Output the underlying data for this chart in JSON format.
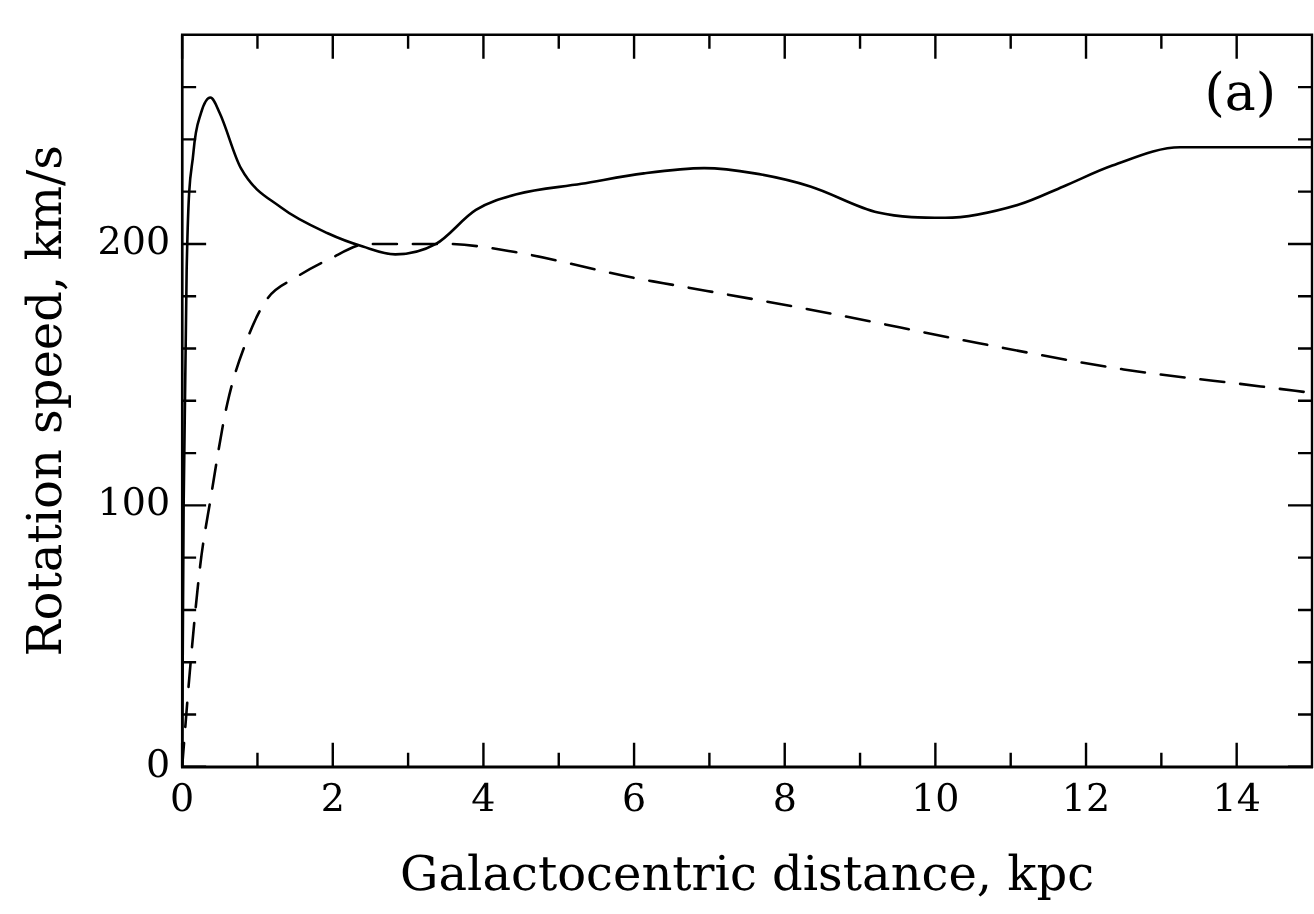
{
  "chart_data": {
    "type": "line",
    "xlabel": "Galactocentric distance, kpc",
    "ylabel": "Rotation speed, km/s",
    "annotations": [
      "(a)"
    ],
    "xlim": [
      0,
      15
    ],
    "ylim": [
      0,
      280
    ],
    "xticks": [
      0,
      {
        "value": 1,
        "label": null
      },
      2,
      {
        "value": 3,
        "label": null
      },
      4,
      {
        "value": 5,
        "label": null
      },
      6,
      {
        "value": 7,
        "label": null
      },
      8,
      {
        "value": 9,
        "label": null
      },
      10,
      {
        "value": 11,
        "label": null
      },
      12,
      {
        "value": 13,
        "label": null
      },
      14
    ],
    "yticks": [
      0,
      {
        "value": 20,
        "label": null
      },
      {
        "value": 40,
        "label": null
      },
      {
        "value": 60,
        "label": null
      },
      {
        "value": 80,
        "label": null
      },
      100,
      {
        "value": 120,
        "label": null
      },
      {
        "value": 140,
        "label": null
      },
      {
        "value": 160,
        "label": null
      },
      {
        "value": 180,
        "label": null
      },
      200,
      {
        "value": 220,
        "label": null
      },
      {
        "value": 240,
        "label": null
      },
      {
        "value": 260,
        "label": null
      }
    ],
    "grid": false,
    "legend": false,
    "marker": "none",
    "series": [
      {
        "color": "#000000",
        "line_style": "solid",
        "x": [
          0,
          0.02,
          0.06,
          0.15,
          0.25,
          0.375,
          0.5,
          0.78,
          1.31,
          1.94,
          2.4,
          2.83,
          3.37,
          3.9,
          4.44,
          5.3,
          6.13,
          6.93,
          7.6,
          8.34,
          9.24,
          10.13,
          11.1,
          11.7,
          12.35,
          13.25,
          14.0,
          15
        ],
        "values": [
          0,
          100,
          190,
          235,
          250,
          256,
          250,
          229,
          214,
          204,
          199,
          196,
          200,
          213,
          219,
          223,
          227,
          229,
          227,
          222,
          212,
          210,
          215,
          222,
          230,
          237,
          237,
          237
        ]
      },
      {
        "color": "#000000",
        "line_style": "dashed",
        "x": [
          0,
          0.11,
          0.24,
          0.375,
          0.6,
          0.87,
          1.13,
          1.5,
          1.94,
          2.47,
          3.5,
          4.4,
          6.0,
          6.39,
          8.5,
          10.58,
          12.5,
          14.32,
          15
        ],
        "values": [
          0,
          39,
          77,
          102,
          139,
          164,
          179,
          187,
          194,
          200,
          200,
          197,
          187,
          185,
          174,
          162,
          152,
          145.5,
          143
        ]
      }
    ]
  }
}
